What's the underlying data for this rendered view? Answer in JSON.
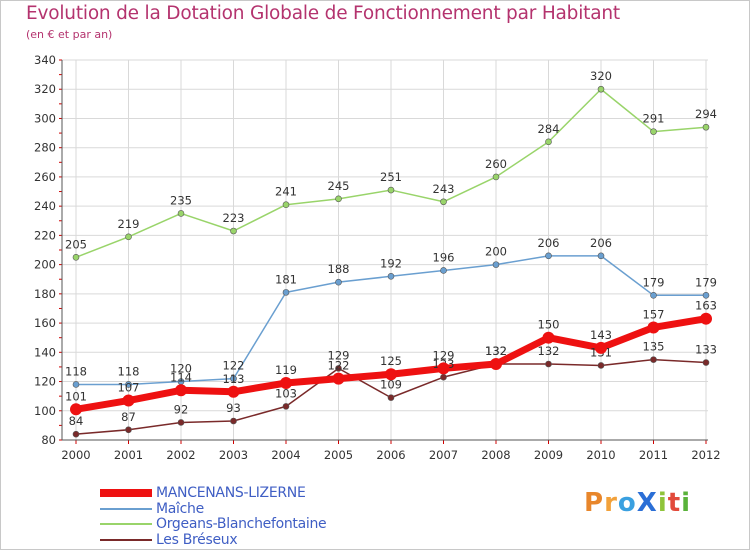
{
  "title": "Evolution de la Dotation Globale de Fonctionnement par Habitant",
  "subtitle": "(en € et par an)",
  "logo": {
    "text": "ProXiti",
    "parts": [
      "P",
      "r",
      "o",
      "X",
      "i",
      "t",
      "i"
    ]
  },
  "colors": {
    "title": "#b4336e",
    "grid": "#d9d9d9",
    "axis": "#555555",
    "legend_text": "#3f5ec4",
    "tick_marks": "#d00000"
  },
  "chart_data": {
    "type": "line",
    "title": "Evolution de la Dotation Globale de Fonctionnement par Habitant",
    "subtitle": "(en € et par an)",
    "xlabel": "",
    "ylabel": "",
    "x": [
      "2000",
      "2001",
      "2002",
      "2003",
      "2004",
      "2005",
      "2006",
      "2007",
      "2008",
      "2009",
      "2010",
      "2011",
      "2012"
    ],
    "yticks": [
      80,
      100,
      120,
      140,
      160,
      180,
      200,
      220,
      240,
      260,
      280,
      300,
      320,
      340
    ],
    "ylim": [
      80,
      340
    ],
    "grid": true,
    "legend_position": "bottom-left",
    "series": [
      {
        "name": "Orgeans-Blanchefontaine",
        "color": "#99d46a",
        "width": 1.5,
        "values": [
          205,
          219,
          235,
          223,
          241,
          245,
          251,
          243,
          260,
          284,
          320,
          291,
          294
        ]
      },
      {
        "name": "Maîche",
        "color": "#6a9fd0",
        "width": 1.5,
        "values": [
          118,
          118,
          120,
          122,
          181,
          188,
          192,
          196,
          200,
          206,
          206,
          179,
          179
        ]
      },
      {
        "name": "Les Bréseux",
        "color": "#7a2a2a",
        "width": 1.5,
        "values": [
          84,
          87,
          92,
          93,
          103,
          129,
          109,
          123,
          132,
          132,
          131,
          135,
          133
        ]
      },
      {
        "name": "MANCENANS-LIZERNE",
        "color": "#ee1111",
        "width": 7,
        "values": [
          101,
          107,
          114,
          113,
          119,
          122,
          125,
          129,
          132,
          150,
          143,
          157,
          163
        ]
      }
    ],
    "legend_order": [
      "MANCENANS-LIZERNE",
      "Maîche",
      "Orgeans-Blanchefontaine",
      "Les Bréseux"
    ]
  }
}
